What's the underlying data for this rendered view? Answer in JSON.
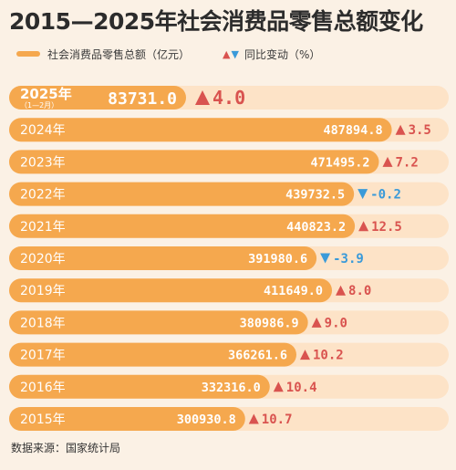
{
  "title": "2015—2025年社会消费品零售总额变化",
  "legend": {
    "bar_label": "社会消费品零售总额（亿元）",
    "change_label": "同比变动（%）"
  },
  "source": "数据来源：国家统计局",
  "colors": {
    "bar": "#f5a84e",
    "bar_track": "#fde3c7",
    "up": "#d9534f",
    "down": "#3a9ad9",
    "text_dark": "#2c2c2c"
  },
  "chart_data": {
    "type": "bar",
    "orientation": "horizontal",
    "categories": [
      "2025年",
      "2024年",
      "2023年",
      "2022年",
      "2021年",
      "2020年",
      "2019年",
      "2018年",
      "2017年",
      "2016年",
      "2015年"
    ],
    "category_notes": [
      "（1—2月）",
      "",
      "",
      "",
      "",
      "",
      "",
      "",
      "",
      "",
      ""
    ],
    "series": [
      {
        "name": "社会消费品零售总额（亿元）",
        "values": [
          83731.0,
          487894.8,
          471495.2,
          439732.5,
          440823.2,
          391980.6,
          411649.0,
          380986.9,
          366261.6,
          332316.0,
          300930.8
        ],
        "labels": [
          "83731.0",
          "487894.8",
          "471495.2",
          "439732.5",
          "440823.2",
          "391980.6",
          "411649.0",
          "380986.9",
          "366261.6",
          "332316.0",
          "300930.8"
        ]
      },
      {
        "name": "同比变动（%）",
        "values": [
          4.0,
          3.5,
          7.2,
          -0.2,
          12.5,
          -3.9,
          8.0,
          9.0,
          10.2,
          10.4,
          10.7
        ],
        "labels": [
          "4.0",
          "3.5",
          "7.2",
          "-0.2",
          "12.5",
          "-3.9",
          "8.0",
          "9.0",
          "10.2",
          "10.4",
          "10.7"
        ]
      }
    ],
    "xlim": [
      0,
      500000
    ],
    "grid": false
  }
}
